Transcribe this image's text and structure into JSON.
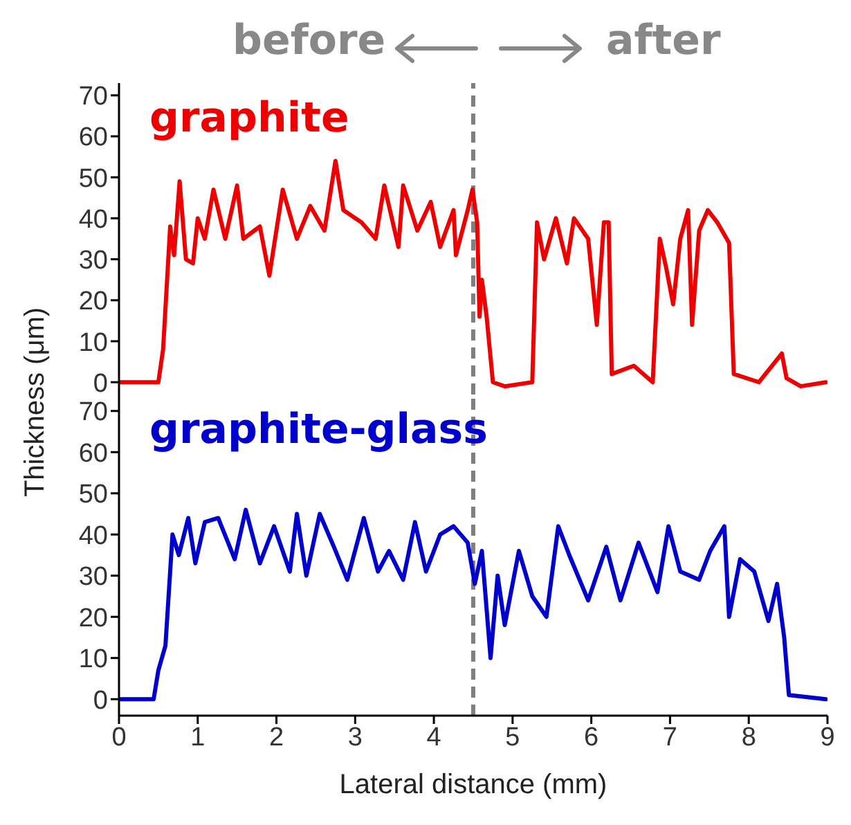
{
  "chart_data": [
    {
      "type": "line",
      "ylabel": "Thickness (μm)",
      "annotations": [
        "before",
        "after"
      ],
      "xlim": [
        0,
        9
      ],
      "xticks": [
        0,
        1,
        2,
        3,
        4,
        5,
        6,
        7,
        8,
        9
      ],
      "ylim": [
        -3,
        73
      ],
      "yticks": [
        0,
        10,
        20,
        30,
        40,
        50,
        60,
        70
      ],
      "tick_labels": "y",
      "marker": "none",
      "line_style": "solid",
      "ref_lines": [
        {
          "axis": "x",
          "value": 4.5,
          "color": "#808080",
          "line_style": "dashed"
        }
      ],
      "series": [
        {
          "name": "graphite",
          "color": "#ee0000",
          "x": [
            0,
            0.5,
            0.56,
            0.65,
            0.7,
            0.77,
            0.85,
            0.94,
            1.0,
            1.09,
            1.2,
            1.35,
            1.5,
            1.58,
            1.79,
            1.91,
            2.08,
            2.26,
            2.43,
            2.61,
            2.75,
            2.85,
            3.08,
            3.26,
            3.37,
            3.55,
            3.61,
            3.79,
            3.96,
            4.08,
            4.25,
            4.28,
            4.43,
            4.49,
            4.55,
            4.58,
            4.61,
            4.67,
            4.75,
            4.9,
            5.25,
            5.31,
            5.4,
            5.55,
            5.69,
            5.78,
            5.96,
            6.07,
            6.16,
            6.22,
            6.26,
            6.54,
            6.78,
            6.87,
            6.95,
            7.04,
            7.13,
            7.23,
            7.28,
            7.37,
            7.48,
            7.6,
            7.75,
            7.81,
            8.13,
            8.42,
            8.48,
            8.66,
            8.98
          ],
          "values": [
            0,
            0,
            8,
            38,
            31,
            49,
            30,
            29,
            40,
            35,
            47,
            35,
            48,
            35,
            38,
            26,
            47,
            35,
            43,
            37,
            54,
            42,
            39,
            35,
            48,
            33,
            48,
            37,
            44,
            33,
            42,
            31,
            42,
            47,
            39,
            16,
            25,
            16,
            0,
            -1,
            0,
            39,
            30,
            40,
            29,
            40,
            35,
            14,
            39,
            39,
            2,
            4,
            0,
            35,
            28,
            19,
            35,
            42,
            14,
            37,
            42,
            39,
            34,
            2,
            0,
            7,
            1,
            -1,
            0
          ]
        }
      ]
    },
    {
      "type": "line",
      "xlabel": "Lateral distance (mm)",
      "xlim": [
        0,
        9
      ],
      "xticks": [
        0,
        1,
        2,
        3,
        4,
        5,
        6,
        7,
        8,
        9
      ],
      "ylim": [
        -4,
        74
      ],
      "yticks": [
        0,
        10,
        20,
        30,
        40,
        50,
        60,
        70
      ],
      "marker": "none",
      "line_style": "solid",
      "ref_lines": [
        {
          "axis": "x",
          "value": 4.5,
          "color": "#808080",
          "line_style": "dashed"
        }
      ],
      "series": [
        {
          "name": "graphite-glass",
          "color": "#0000cc",
          "x": [
            0,
            0.44,
            0.5,
            0.59,
            0.68,
            0.76,
            0.88,
            0.97,
            1.09,
            1.26,
            1.47,
            1.61,
            1.79,
            1.97,
            2.17,
            2.26,
            2.38,
            2.55,
            2.73,
            2.9,
            3.11,
            3.29,
            3.43,
            3.61,
            3.76,
            3.9,
            4.08,
            4.25,
            4.43,
            4.52,
            4.61,
            4.72,
            4.81,
            4.9,
            5.08,
            5.25,
            5.43,
            5.58,
            5.72,
            5.96,
            6.19,
            6.37,
            6.6,
            6.84,
            6.98,
            7.13,
            7.37,
            7.51,
            7.69,
            7.75,
            7.89,
            8.07,
            8.25,
            8.36,
            8.45,
            8.51,
            8.98
          ],
          "values": [
            0,
            0,
            7,
            13,
            40,
            35,
            44,
            33,
            43,
            44,
            34,
            46,
            33,
            42,
            31,
            45,
            30,
            45,
            37,
            29,
            44,
            31,
            36,
            29,
            43,
            31,
            40,
            42,
            38,
            28,
            36,
            10,
            30,
            18,
            36,
            25,
            20,
            42,
            35,
            24,
            37,
            24,
            38,
            26,
            42,
            31,
            29,
            36,
            42,
            20,
            34,
            31,
            19,
            28,
            15,
            1,
            0
          ]
        }
      ]
    }
  ]
}
